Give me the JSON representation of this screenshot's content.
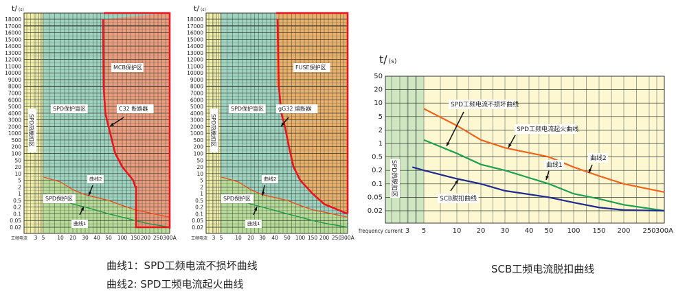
{
  "chart_data": [
    {
      "type": "line",
      "title": "",
      "ylabel": "t/ (s)",
      "xlabel": "工频电流",
      "x_ticks": [
        "3",
        "5",
        "10",
        "20",
        "30",
        "40",
        "50",
        "100",
        "150",
        "200",
        "250",
        "300A"
      ],
      "x_tick_values": [
        3,
        5,
        10,
        20,
        30,
        40,
        50,
        100,
        150,
        200,
        250,
        300
      ],
      "y_ticks": [
        18000,
        17000,
        16000,
        15000,
        14000,
        13000,
        12000,
        11000,
        10000,
        9000,
        8000,
        7000,
        6000,
        5000,
        4000,
        3000,
        2000,
        1000,
        500,
        200,
        100,
        50,
        20,
        10,
        5,
        2,
        1,
        0.5,
        0.2,
        0.1,
        0.05,
        0.02
      ],
      "grid": true,
      "regions": [
        {
          "label": "SPD热脱扣区",
          "color": "#f3efa8"
        },
        {
          "label": "SPD保护盲区",
          "color": "#9fd3c0"
        },
        {
          "label": "MCB保护区",
          "color": "#eb9d7e"
        },
        {
          "label": "SPD保护区",
          "color": "#b8dc98"
        }
      ],
      "series": [
        {
          "name": "曲线2",
          "color": "#e8501e",
          "x": [
            5,
            10,
            20,
            30,
            50,
            100,
            150,
            200,
            300
          ],
          "y": [
            7,
            4,
            1.5,
            0.9,
            0.5,
            0.25,
            0.15,
            0.12,
            0.07
          ]
        },
        {
          "name": "曲线1",
          "color": "#1e9a48",
          "x": [
            5,
            10,
            20,
            30,
            50,
            100,
            150,
            200,
            300
          ],
          "y": [
            1,
            0.6,
            0.3,
            0.2,
            0.1,
            0.07,
            0.05,
            0.035,
            0.02
          ]
        },
        {
          "name": "C32 断路器",
          "color": "#e8141e",
          "x": [
            45,
            45.5,
            47,
            50,
            70,
            100,
            140,
            150,
            153,
            153,
            300
          ],
          "y": [
            18000,
            8000,
            4000,
            2000,
            100,
            20,
            5,
            2,
            2,
            0.02,
            0.02
          ]
        }
      ]
    },
    {
      "type": "line",
      "title": "",
      "ylabel": "t/ (s)",
      "xlabel": "工频电流",
      "x_ticks": [
        "3",
        "5",
        "10",
        "20",
        "30",
        "40",
        "50",
        "100",
        "150",
        "200",
        "250",
        "300A"
      ],
      "x_tick_values": [
        3,
        5,
        10,
        20,
        30,
        40,
        50,
        100,
        150,
        200,
        250,
        300
      ],
      "y_ticks": [
        18000,
        17000,
        16000,
        15000,
        14000,
        13000,
        12000,
        11000,
        10000,
        9000,
        8000,
        7000,
        6000,
        5000,
        4000,
        3000,
        2000,
        1000,
        500,
        200,
        100,
        50,
        20,
        10,
        5,
        2,
        1,
        0.5,
        0.2,
        0.1,
        0.05,
        0.02
      ],
      "grid": true,
      "regions": [
        {
          "label": "SPD热脱扣区",
          "color": "#f3efa8"
        },
        {
          "label": "SPD保护盲区",
          "color": "#9fd3c0"
        },
        {
          "label": "FUSE保护区",
          "color": "#eab06a"
        },
        {
          "label": "SPD保护区",
          "color": "#b8dc98"
        }
      ],
      "series": [
        {
          "name": "曲线2",
          "color": "#e8501e",
          "x": [
            5,
            10,
            20,
            30,
            50,
            100,
            150,
            200,
            300
          ],
          "y": [
            7,
            4,
            1.5,
            0.9,
            0.5,
            0.25,
            0.15,
            0.12,
            0.07
          ]
        },
        {
          "name": "曲线1",
          "color": "#1e9a48",
          "x": [
            5,
            10,
            20,
            30,
            50,
            100,
            150,
            200,
            300
          ],
          "y": [
            1,
            0.6,
            0.3,
            0.2,
            0.1,
            0.07,
            0.05,
            0.035,
            0.02
          ]
        },
        {
          "name": "gG32 熔断器",
          "color": "#e8141e",
          "x": [
            42,
            43,
            45,
            48,
            55,
            70,
            100,
            150,
            200,
            300
          ],
          "y": [
            18000,
            8000,
            4000,
            2000,
            200,
            20,
            5,
            1,
            0.3,
            0.1
          ]
        }
      ]
    },
    {
      "type": "line",
      "title": "",
      "ylabel": "t/ (s)",
      "xlabel": "frequency current",
      "x_ticks": [
        "3",
        "5",
        "10",
        "20",
        "30",
        "40",
        "50",
        "100",
        "150",
        "200",
        "250",
        "300A"
      ],
      "x_tick_values": [
        3,
        5,
        10,
        20,
        30,
        40,
        50,
        100,
        150,
        200,
        250,
        300
      ],
      "y_ticks": [
        50,
        20,
        10,
        5,
        2,
        1,
        0.5,
        0.2,
        0.1,
        0.05,
        0.02
      ],
      "grid": true,
      "regions": [
        {
          "label": "SPD热脱扣区",
          "color": "#cfe6c0"
        }
      ],
      "series": [
        {
          "name": "SPD工频电流起火曲线",
          "label2": "曲线2",
          "color": "#f0641e",
          "x": [
            5,
            10,
            20,
            30,
            50,
            100,
            150,
            200,
            300
          ],
          "y": [
            7.5,
            2.7,
            1.2,
            0.8,
            0.5,
            0.25,
            0.15,
            0.1,
            0.065
          ]
        },
        {
          "name": "SPD工频电流不损坏曲线",
          "label2": "曲线1",
          "color": "#1ea050",
          "x": [
            5,
            10,
            20,
            30,
            50,
            100,
            150,
            200,
            300
          ],
          "y": [
            1.2,
            0.6,
            0.3,
            0.2,
            0.1,
            0.06,
            0.045,
            0.03,
            0.02
          ]
        },
        {
          "name": "SCB脱扣曲线",
          "color": "#1e2a8c",
          "x": [
            3.5,
            5,
            10,
            20,
            30,
            50,
            100,
            150,
            200,
            300
          ],
          "y": [
            0.25,
            0.2,
            0.13,
            0.1,
            0.07,
            0.05,
            0.035,
            0.025,
            0.021,
            0.02
          ]
        }
      ]
    }
  ],
  "captions": {
    "curve1": "曲线1：SPD工频电流不损坏曲线",
    "curve2": "曲线2:  SPD工频电流起火曲线",
    "right": "SCB工频电流脱扣曲线"
  }
}
